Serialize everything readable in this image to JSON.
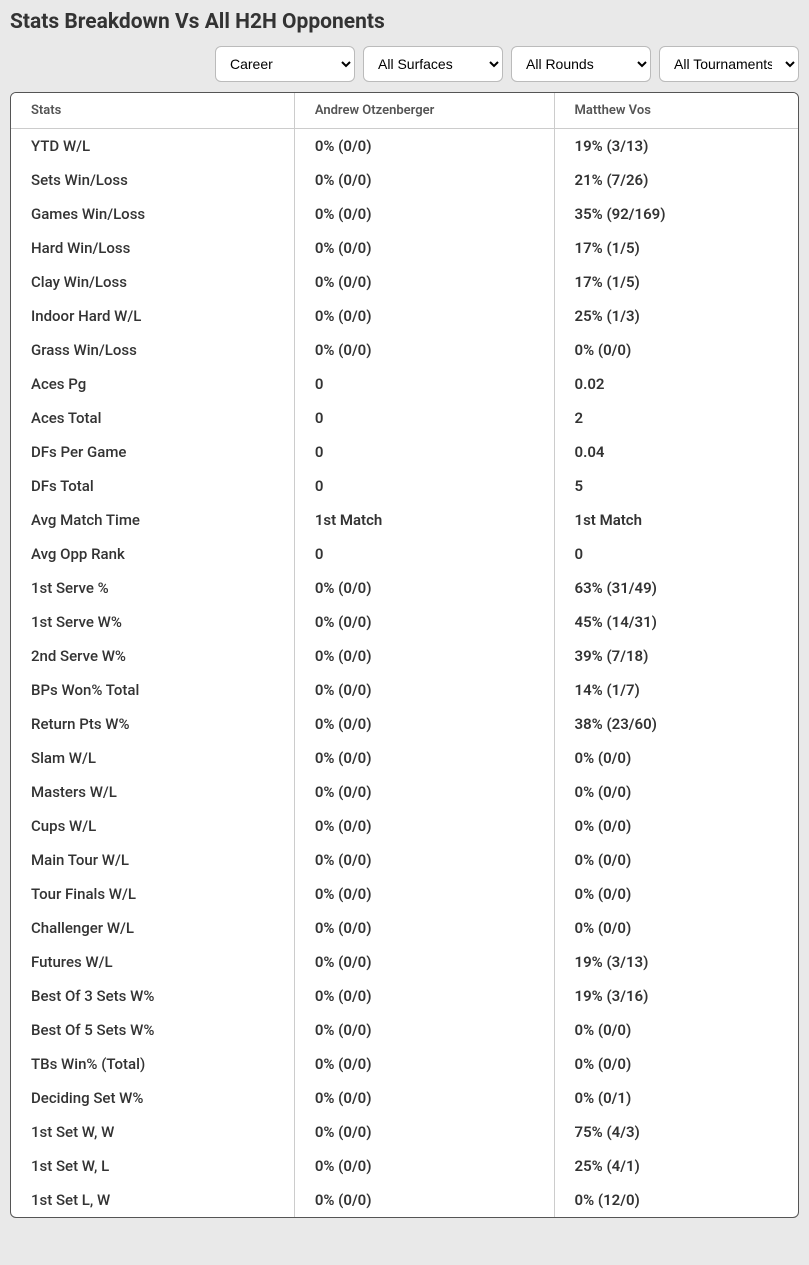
{
  "title": "Stats Breakdown Vs All H2H Opponents",
  "filters": {
    "career": "Career",
    "surfaces": "All Surfaces",
    "rounds": "All Rounds",
    "tournaments": "All Tournaments"
  },
  "columns": {
    "stats": "Stats",
    "player1": "Andrew Otzenberger",
    "player2": "Matthew Vos"
  },
  "rows": [
    {
      "label": "YTD W/L",
      "p1": "0% (0/0)",
      "p2": "19% (3/13)"
    },
    {
      "label": "Sets Win/Loss",
      "p1": "0% (0/0)",
      "p2": "21% (7/26)"
    },
    {
      "label": "Games Win/Loss",
      "p1": "0% (0/0)",
      "p2": "35% (92/169)"
    },
    {
      "label": "Hard Win/Loss",
      "p1": "0% (0/0)",
      "p2": "17% (1/5)"
    },
    {
      "label": "Clay Win/Loss",
      "p1": "0% (0/0)",
      "p2": "17% (1/5)"
    },
    {
      "label": "Indoor Hard W/L",
      "p1": "0% (0/0)",
      "p2": "25% (1/3)"
    },
    {
      "label": "Grass Win/Loss",
      "p1": "0% (0/0)",
      "p2": "0% (0/0)"
    },
    {
      "label": "Aces Pg",
      "p1": "0",
      "p2": "0.02"
    },
    {
      "label": "Aces Total",
      "p1": "0",
      "p2": "2"
    },
    {
      "label": "DFs Per Game",
      "p1": "0",
      "p2": "0.04"
    },
    {
      "label": "DFs Total",
      "p1": "0",
      "p2": "5"
    },
    {
      "label": "Avg Match Time",
      "p1": "1st Match",
      "p2": "1st Match"
    },
    {
      "label": "Avg Opp Rank",
      "p1": "0",
      "p2": "0"
    },
    {
      "label": "1st Serve %",
      "p1": "0% (0/0)",
      "p2": "63% (31/49)"
    },
    {
      "label": "1st Serve W%",
      "p1": "0% (0/0)",
      "p2": "45% (14/31)"
    },
    {
      "label": "2nd Serve W%",
      "p1": "0% (0/0)",
      "p2": "39% (7/18)"
    },
    {
      "label": "BPs Won% Total",
      "p1": "0% (0/0)",
      "p2": "14% (1/7)"
    },
    {
      "label": "Return Pts W%",
      "p1": "0% (0/0)",
      "p2": "38% (23/60)"
    },
    {
      "label": "Slam W/L",
      "p1": "0% (0/0)",
      "p2": "0% (0/0)"
    },
    {
      "label": "Masters W/L",
      "p1": "0% (0/0)",
      "p2": "0% (0/0)"
    },
    {
      "label": "Cups W/L",
      "p1": "0% (0/0)",
      "p2": "0% (0/0)"
    },
    {
      "label": "Main Tour W/L",
      "p1": "0% (0/0)",
      "p2": "0% (0/0)"
    },
    {
      "label": "Tour Finals W/L",
      "p1": "0% (0/0)",
      "p2": "0% (0/0)"
    },
    {
      "label": "Challenger W/L",
      "p1": "0% (0/0)",
      "p2": "0% (0/0)"
    },
    {
      "label": "Futures W/L",
      "p1": "0% (0/0)",
      "p2": "19% (3/13)"
    },
    {
      "label": "Best Of 3 Sets W%",
      "p1": "0% (0/0)",
      "p2": "19% (3/16)"
    },
    {
      "label": "Best Of 5 Sets W%",
      "p1": "0% (0/0)",
      "p2": "0% (0/0)"
    },
    {
      "label": "TBs Win% (Total)",
      "p1": "0% (0/0)",
      "p2": "0% (0/0)"
    },
    {
      "label": "Deciding Set W%",
      "p1": "0% (0/0)",
      "p2": "0% (0/1)"
    },
    {
      "label": "1st Set W, W",
      "p1": "0% (0/0)",
      "p2": "75% (4/3)"
    },
    {
      "label": "1st Set W, L",
      "p1": "0% (0/0)",
      "p2": "25% (4/1)"
    },
    {
      "label": "1st Set L, W",
      "p1": "0% (0/0)",
      "p2": "0% (12/0)"
    }
  ]
}
